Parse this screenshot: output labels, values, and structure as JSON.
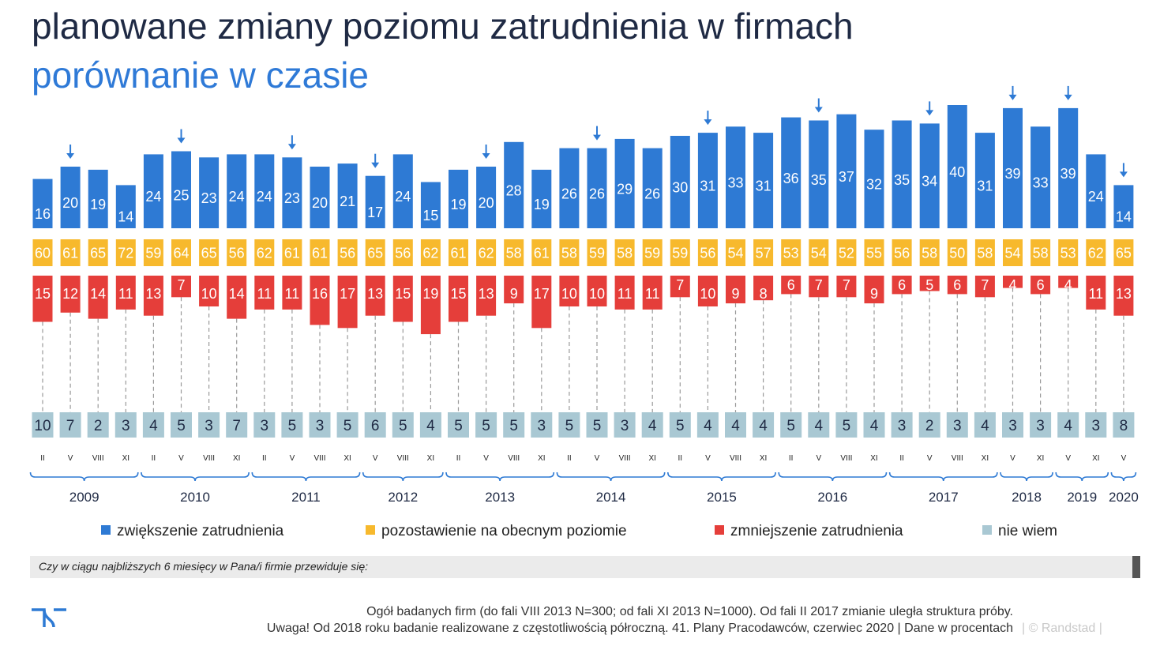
{
  "title": "planowane zmiany poziomu zatrudnienia w firmach",
  "subtitle": "porównanie w czasie",
  "colors": {
    "increase": "#2e7ad4",
    "keep": "#f7b92d",
    "decrease": "#e53e3a",
    "dontknow": "#a9c8d3",
    "arrow": "#2e7ad4"
  },
  "legend": {
    "increase": "zwiększenie zatrudnienia",
    "keep": "pozostawienie na obecnym poziomie",
    "decrease": "zmniejszenie zatrudnienia",
    "dontknow": "nie wiem"
  },
  "question": "Czy w ciągu najbliższych 6 miesięcy w Pana/i firmie przewiduje się:",
  "footer": {
    "line1": "Ogół badanych firm (do fali VIII 2013 N=300; od fali XI 2013 N=1000).  Od fali II 2017 zmianie uległa struktura próby.",
    "line2": "Uwaga! Od 2018 roku badanie realizowane z częstotliwością półroczną. 41. Plany Pracodawców, czerwiec 2020  | Dane w procentach",
    "brand": "|  © Randstad  |"
  },
  "chart_data": {
    "type": "bar",
    "categories": [
      "II",
      "V",
      "VIII",
      "XI",
      "II",
      "V",
      "VIII",
      "XI",
      "II",
      "V",
      "VIII",
      "XI",
      "V",
      "VIII",
      "XI",
      "II",
      "V",
      "VIII",
      "XI",
      "II",
      "V",
      "VIII",
      "XI",
      "II",
      "V",
      "VIII",
      "XI",
      "II",
      "V",
      "VIII",
      "XI",
      "II",
      "V",
      "VIII",
      "XI",
      "V",
      "XI",
      "V",
      "XI",
      "V"
    ],
    "years": [
      {
        "label": "2009",
        "count": 4
      },
      {
        "label": "2010",
        "count": 4
      },
      {
        "label": "2011",
        "count": 4
      },
      {
        "label": "2012",
        "count": 3
      },
      {
        "label": "2013",
        "count": 4
      },
      {
        "label": "2014",
        "count": 4
      },
      {
        "label": "2015",
        "count": 4
      },
      {
        "label": "2016",
        "count": 4
      },
      {
        "label": "2017",
        "count": 4
      },
      {
        "label": "2018",
        "count": 2
      },
      {
        "label": "2019",
        "count": 2
      },
      {
        "label": "2020",
        "count": 1
      }
    ],
    "series": [
      {
        "name": "zwiększenie zatrudnienia",
        "key": "increase",
        "values": [
          16,
          20,
          19,
          14,
          24,
          25,
          23,
          24,
          24,
          23,
          20,
          21,
          17,
          24,
          15,
          19,
          20,
          28,
          19,
          26,
          26,
          29,
          26,
          30,
          31,
          33,
          31,
          36,
          35,
          37,
          32,
          35,
          34,
          40,
          31,
          39,
          33,
          39,
          24,
          14
        ]
      },
      {
        "name": "pozostawienie na obecnym poziomie",
        "key": "keep",
        "values": [
          60,
          61,
          65,
          72,
          59,
          64,
          65,
          56,
          62,
          61,
          61,
          56,
          65,
          56,
          62,
          61,
          62,
          58,
          61,
          58,
          59,
          58,
          59,
          59,
          56,
          54,
          57,
          53,
          54,
          52,
          55,
          56,
          58,
          50,
          58,
          54,
          58,
          53,
          62,
          65
        ]
      },
      {
        "name": "zmniejszenie zatrudnienia",
        "key": "decrease",
        "values": [
          15,
          12,
          14,
          11,
          13,
          7,
          10,
          14,
          11,
          11,
          16,
          17,
          13,
          15,
          19,
          15,
          13,
          9,
          17,
          10,
          10,
          11,
          11,
          7,
          10,
          9,
          8,
          6,
          7,
          7,
          9,
          6,
          5,
          6,
          7,
          4,
          6,
          4,
          11,
          13
        ]
      },
      {
        "name": "nie wiem",
        "key": "dontknow",
        "values": [
          10,
          7,
          2,
          3,
          4,
          5,
          3,
          7,
          3,
          5,
          3,
          5,
          6,
          5,
          4,
          5,
          5,
          5,
          3,
          5,
          5,
          3,
          4,
          5,
          4,
          4,
          4,
          5,
          4,
          5,
          4,
          3,
          2,
          3,
          4,
          3,
          3,
          4,
          3,
          8
        ]
      }
    ],
    "arrows": [
      1,
      5,
      9,
      12,
      16,
      20,
      24,
      28,
      32,
      35,
      37,
      39
    ]
  }
}
